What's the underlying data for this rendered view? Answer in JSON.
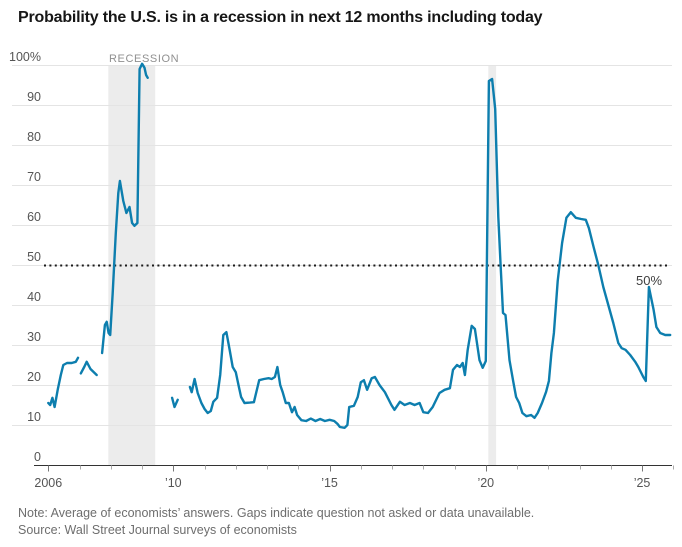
{
  "header": {
    "title": "Probability the U.S. is in a recession in next 12 months including today"
  },
  "footer": {
    "note": "Note: Average of economists’ answers. Gaps indicate question not asked or data unavailable.",
    "source": "Source: Wall Street Journal surveys of economists"
  },
  "colors": {
    "line": "#0d7eae",
    "recession_band": "#ececec",
    "gridline": "#e4e4e4",
    "axis": "#333333",
    "reference_dotted": "#1b1b1b",
    "tick_label": "#555555",
    "recession_label": "#909090",
    "ref_label": "#404040"
  },
  "chart_data": {
    "type": "line",
    "title": "Probability the U.S. is in a recession in next 12 months including today",
    "xlabel": "",
    "ylabel": "",
    "ylim": [
      0,
      100
    ],
    "xlim": [
      2005.8,
      2026.1
    ],
    "grid": true,
    "legend": "none",
    "y_ticks": [
      {
        "value": 100,
        "label": "100%"
      },
      {
        "value": 90,
        "label": "90"
      },
      {
        "value": 80,
        "label": "80"
      },
      {
        "value": 70,
        "label": "70"
      },
      {
        "value": 60,
        "label": "60"
      },
      {
        "value": 50,
        "label": "50"
      },
      {
        "value": 40,
        "label": "40"
      },
      {
        "value": 30,
        "label": "30"
      },
      {
        "value": 20,
        "label": "20"
      },
      {
        "value": 10,
        "label": "10"
      },
      {
        "value": 0,
        "label": "0"
      }
    ],
    "x_tick_range": [
      2006,
      2026
    ],
    "x_tick_labels": [
      {
        "year": 2006,
        "label": "2006"
      },
      {
        "year": 2010,
        "label": "’10"
      },
      {
        "year": 2015,
        "label": "’15"
      },
      {
        "year": 2020,
        "label": "’20"
      },
      {
        "year": 2025,
        "label": "’25"
      }
    ],
    "reference_line": {
      "value": 50,
      "label": "50%",
      "style": "dotted"
    },
    "recession_bands": [
      {
        "from": 2007.92,
        "to": 2009.42
      },
      {
        "from": 2020.08,
        "to": 2020.33
      }
    ],
    "recession_label": "RECESSION",
    "series": [
      {
        "name": "Recession probability",
        "unit": "%",
        "color": "#0d7eae",
        "segments": [
          [
            [
              2006.0,
              15.5
            ],
            [
              2006.06,
              15.0
            ],
            [
              2006.13,
              16.8
            ],
            [
              2006.2,
              14.5
            ],
            [
              2006.3,
              18.8
            ],
            [
              2006.4,
              22.5
            ],
            [
              2006.48,
              25.0
            ],
            [
              2006.6,
              25.5
            ],
            [
              2006.75,
              25.5
            ],
            [
              2006.88,
              25.8
            ],
            [
              2006.95,
              26.8
            ]
          ],
          [
            [
              2007.04,
              22.9
            ],
            [
              2007.15,
              24.5
            ],
            [
              2007.23,
              25.8
            ],
            [
              2007.35,
              24.0
            ],
            [
              2007.55,
              22.5
            ]
          ],
          [
            [
              2007.72,
              28.0
            ],
            [
              2007.81,
              35.0
            ],
            [
              2007.87,
              35.8
            ],
            [
              2007.93,
              33.0
            ],
            [
              2007.98,
              32.5
            ],
            [
              2008.06,
              43.0
            ],
            [
              2008.16,
              58.0
            ],
            [
              2008.24,
              68.0
            ],
            [
              2008.29,
              71.0
            ],
            [
              2008.4,
              66.0
            ],
            [
              2008.5,
              63.0
            ],
            [
              2008.6,
              64.5
            ],
            [
              2008.68,
              60.5
            ],
            [
              2008.76,
              59.8
            ],
            [
              2008.85,
              60.5
            ],
            [
              2008.92,
              99.0
            ],
            [
              2009.0,
              100.3
            ],
            [
              2009.08,
              99.3
            ],
            [
              2009.13,
              97.5
            ],
            [
              2009.18,
              96.8
            ]
          ],
          [
            [
              2009.96,
              16.8
            ],
            [
              2010.04,
              14.5
            ],
            [
              2010.14,
              16.3
            ]
          ],
          [
            [
              2010.53,
              19.5
            ],
            [
              2010.59,
              18.2
            ],
            [
              2010.68,
              21.5
            ],
            [
              2010.78,
              18.0
            ],
            [
              2010.9,
              15.5
            ],
            [
              2011.0,
              14.0
            ],
            [
              2011.1,
              13.0
            ],
            [
              2011.2,
              13.5
            ],
            [
              2011.28,
              15.8
            ],
            [
              2011.4,
              16.8
            ],
            [
              2011.5,
              22.5
            ],
            [
              2011.6,
              32.5
            ],
            [
              2011.7,
              33.2
            ],
            [
              2011.8,
              29.0
            ],
            [
              2011.9,
              24.5
            ],
            [
              2012.0,
              23.2
            ],
            [
              2012.1,
              19.5
            ],
            [
              2012.17,
              17.0
            ],
            [
              2012.28,
              15.5
            ],
            [
              2012.45,
              15.6
            ],
            [
              2012.58,
              15.7
            ],
            [
              2012.65,
              18.0
            ],
            [
              2012.75,
              21.2
            ],
            [
              2012.9,
              21.5
            ],
            [
              2013.05,
              21.7
            ],
            [
              2013.15,
              21.5
            ],
            [
              2013.25,
              22.0
            ],
            [
              2013.33,
              24.5
            ],
            [
              2013.42,
              20.0
            ],
            [
              2013.5,
              18.2
            ],
            [
              2013.6,
              15.5
            ],
            [
              2013.7,
              15.5
            ],
            [
              2013.8,
              13.2
            ],
            [
              2013.88,
              14.5
            ],
            [
              2013.96,
              12.5
            ],
            [
              2014.1,
              11.2
            ],
            [
              2014.25,
              11.0
            ],
            [
              2014.4,
              11.6
            ],
            [
              2014.55,
              11.0
            ],
            [
              2014.7,
              11.5
            ],
            [
              2014.85,
              11.0
            ],
            [
              2015.0,
              11.3
            ],
            [
              2015.15,
              11.0
            ],
            [
              2015.25,
              10.3
            ],
            [
              2015.33,
              9.5
            ],
            [
              2015.48,
              9.3
            ],
            [
              2015.57,
              10.0
            ],
            [
              2015.63,
              14.5
            ],
            [
              2015.78,
              14.8
            ],
            [
              2015.9,
              17.0
            ],
            [
              2016.0,
              20.7
            ],
            [
              2016.1,
              21.2
            ],
            [
              2016.2,
              18.8
            ],
            [
              2016.35,
              21.7
            ],
            [
              2016.45,
              22.0
            ],
            [
              2016.6,
              20.0
            ],
            [
              2016.77,
              18.2
            ],
            [
              2016.98,
              15.0
            ],
            [
              2017.08,
              13.8
            ],
            [
              2017.25,
              15.8
            ],
            [
              2017.4,
              15.0
            ],
            [
              2017.57,
              15.5
            ],
            [
              2017.72,
              15.0
            ],
            [
              2017.88,
              15.5
            ],
            [
              2018.0,
              13.2
            ],
            [
              2018.15,
              13.0
            ],
            [
              2018.3,
              14.5
            ],
            [
              2018.52,
              18.0
            ],
            [
              2018.68,
              18.8
            ],
            [
              2018.85,
              19.2
            ],
            [
              2018.95,
              23.8
            ],
            [
              2019.08,
              25.0
            ],
            [
              2019.17,
              24.5
            ],
            [
              2019.26,
              25.5
            ],
            [
              2019.33,
              22.5
            ],
            [
              2019.42,
              28.8
            ],
            [
              2019.55,
              34.8
            ],
            [
              2019.65,
              34.0
            ],
            [
              2019.8,
              26.2
            ],
            [
              2019.9,
              24.3
            ],
            [
              2020.0,
              26.0
            ],
            [
              2020.1,
              96.0
            ],
            [
              2020.2,
              96.5
            ],
            [
              2020.3,
              89.0
            ],
            [
              2020.4,
              62.0
            ],
            [
              2020.47,
              50.5
            ],
            [
              2020.55,
              38.0
            ],
            [
              2020.63,
              37.5
            ],
            [
              2020.76,
              26.2
            ],
            [
              2020.88,
              20.8
            ],
            [
              2020.97,
              17.0
            ],
            [
              2021.07,
              15.5
            ],
            [
              2021.17,
              13.0
            ],
            [
              2021.3,
              12.2
            ],
            [
              2021.45,
              12.5
            ],
            [
              2021.56,
              11.8
            ],
            [
              2021.66,
              13.0
            ],
            [
              2021.8,
              15.5
            ],
            [
              2021.93,
              18.3
            ],
            [
              2022.02,
              21.0
            ],
            [
              2022.1,
              28.0
            ],
            [
              2022.18,
              33.0
            ],
            [
              2022.3,
              46.0
            ],
            [
              2022.44,
              55.5
            ],
            [
              2022.58,
              61.8
            ],
            [
              2022.72,
              63.2
            ],
            [
              2022.88,
              61.8
            ],
            [
              2023.05,
              61.5
            ],
            [
              2023.2,
              61.3
            ],
            [
              2023.3,
              59.2
            ],
            [
              2023.45,
              54.5
            ],
            [
              2023.6,
              50.0
            ],
            [
              2023.76,
              44.5
            ],
            [
              2023.92,
              40.0
            ],
            [
              2024.08,
              35.5
            ],
            [
              2024.24,
              30.5
            ],
            [
              2024.35,
              29.2
            ],
            [
              2024.47,
              28.8
            ],
            [
              2024.62,
              27.5
            ],
            [
              2024.78,
              25.8
            ],
            [
              2024.88,
              24.5
            ],
            [
              2025.04,
              22.0
            ],
            [
              2025.12,
              21.0
            ],
            [
              2025.22,
              44.5
            ],
            [
              2025.37,
              38.8
            ],
            [
              2025.46,
              34.5
            ],
            [
              2025.58,
              33.0
            ],
            [
              2025.74,
              32.5
            ],
            [
              2025.9,
              32.5
            ]
          ]
        ]
      }
    ]
  }
}
